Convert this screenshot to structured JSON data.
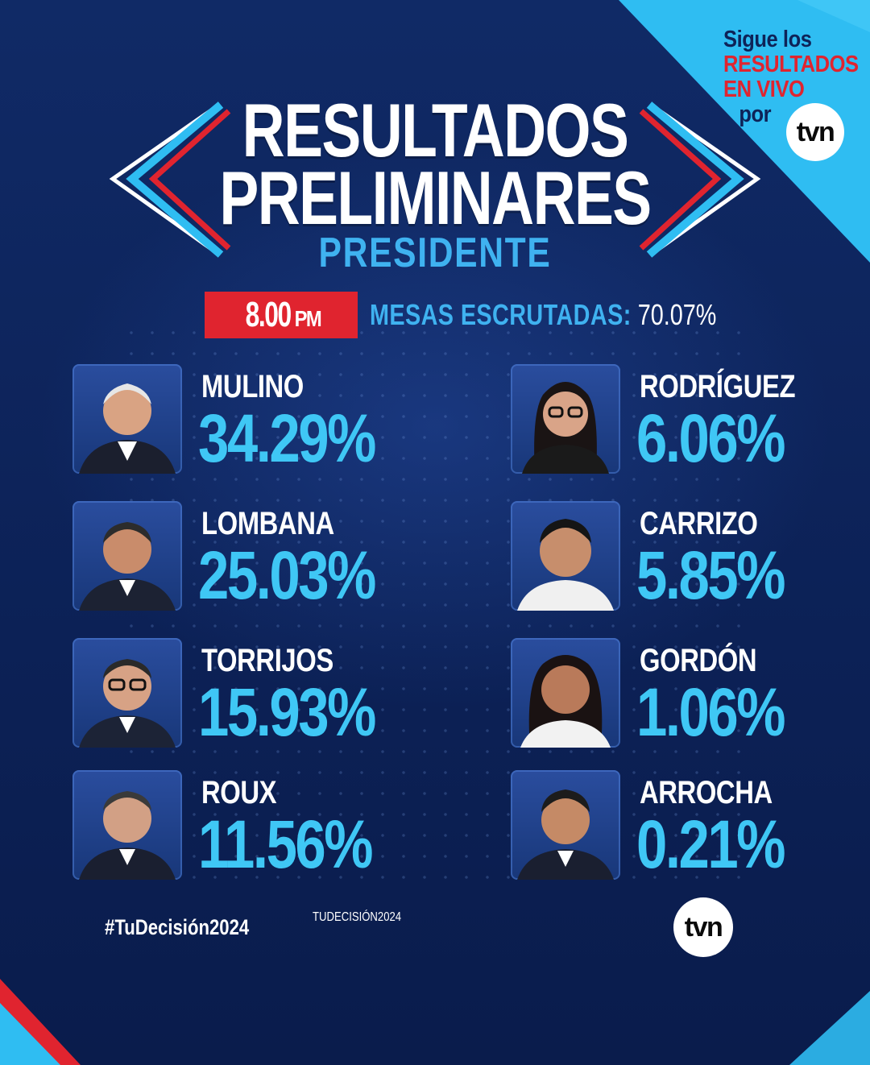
{
  "corner_promo": {
    "line1": "Sigue los",
    "line2": "RESULTADOS",
    "line3": "EN VIVO",
    "line4": "por",
    "logo": "tvn"
  },
  "header": {
    "title_line1": "RESULTADOS",
    "title_line2": "PRELIMINARES",
    "subtitle": "PRESIDENTE"
  },
  "status": {
    "time": "8.00",
    "time_suffix": "PM",
    "label": "MESAS ESCRUTADAS:",
    "value": "70.07%"
  },
  "candidates_left": [
    {
      "name": "MULINO",
      "pct": "34.29%"
    },
    {
      "name": "LOMBANA",
      "pct": "25.03%"
    },
    {
      "name": "TORRIJOS",
      "pct": "15.93%"
    },
    {
      "name": "ROUX",
      "pct": "11.56%"
    }
  ],
  "candidates_right": [
    {
      "name": "RODRÍGUEZ",
      "pct": "6.06%"
    },
    {
      "name": "CARRIZO",
      "pct": "5.85%"
    },
    {
      "name": "GORDÓN",
      "pct": "1.06%"
    },
    {
      "name": "ARROCHA",
      "pct": "0.21%"
    }
  ],
  "footer": {
    "hashtag": "#TuDecisión2024",
    "logo_tu": "TU",
    "logo_decision": "DECISIÓN",
    "logo_year": "2024",
    "brand": "tvn"
  },
  "colors": {
    "background": "#0e2358",
    "accent_blue": "#3fc7f5",
    "accent_red": "#e0242f",
    "corner_cyan": "#2fbdf2"
  }
}
